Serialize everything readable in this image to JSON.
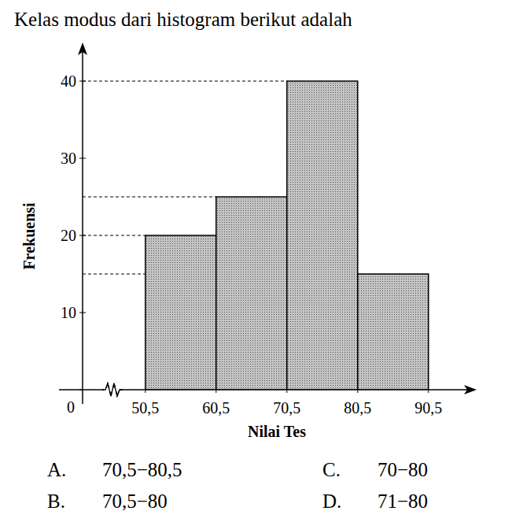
{
  "question": "Kelas modus dari histogram berikut adalah",
  "chart_data": {
    "type": "histogram",
    "x_label": "Nilai Tes",
    "y_label": "Frekuensi",
    "bins": [
      50.5,
      60.5,
      70.5,
      80.5,
      90.5
    ],
    "values": [
      20,
      25,
      40,
      15
    ],
    "color": "#c4c4c4",
    "xlim": [
      38.3,
      97.3
    ],
    "xticks": [
      {
        "value": 50.5,
        "label": "50,5"
      },
      {
        "value": 60.5,
        "label": "60,5"
      },
      {
        "value": 70.5,
        "label": "70,5"
      },
      {
        "value": 80.5,
        "label": "80,5"
      },
      {
        "value": 90.5,
        "label": "90,5"
      }
    ],
    "ylim": [
      0,
      45
    ],
    "yticks": [
      0,
      10,
      20,
      30,
      40
    ],
    "grid": false
  },
  "options": [
    {
      "letter": "A.",
      "text": "70,5−80,5"
    },
    {
      "letter": "B.",
      "text": "70,5−80"
    },
    {
      "letter": "C.",
      "text": "70−80"
    },
    {
      "letter": "D.",
      "text": "71−80"
    }
  ]
}
